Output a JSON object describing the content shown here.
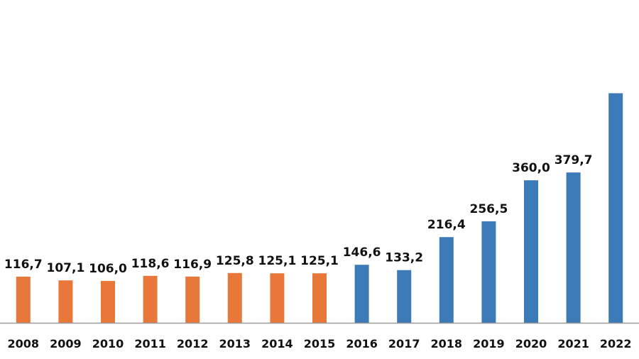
{
  "chart_data": {
    "type": "bar",
    "title": "",
    "xlabel": "",
    "ylabel": "",
    "ylim": [
      0,
      580
    ],
    "grid": false,
    "legend": "none",
    "categories": [
      "2008",
      "2009",
      "2010",
      "2011",
      "2012",
      "2013",
      "2014",
      "2015",
      "2016",
      "2017",
      "2018",
      "2019",
      "2020",
      "2021",
      "2022"
    ],
    "values": [
      116.7,
      107.1,
      106.0,
      118.6,
      116.9,
      125.8,
      125.1,
      125.1,
      146.6,
      133.2,
      216.4,
      256.5,
      360.0,
      379.7,
      580
    ],
    "value_labels": [
      "116,7",
      "107,1",
      "106,0",
      "118,6",
      "116,9",
      "125,8",
      "125,1",
      "125,1",
      "146,6",
      "133,2",
      "216,4",
      "256,5",
      "360,0",
      "379,7",
      ""
    ],
    "colors": [
      "#E8773A",
      "#E8773A",
      "#E8773A",
      "#E8773A",
      "#E8773A",
      "#E8773A",
      "#E8773A",
      "#E8773A",
      "#3D7AB8",
      "#3D7AB8",
      "#3D7AB8",
      "#3D7AB8",
      "#3D7AB8",
      "#3D7AB8",
      "#3D7AB8"
    ],
    "axis_color": "#999999"
  }
}
